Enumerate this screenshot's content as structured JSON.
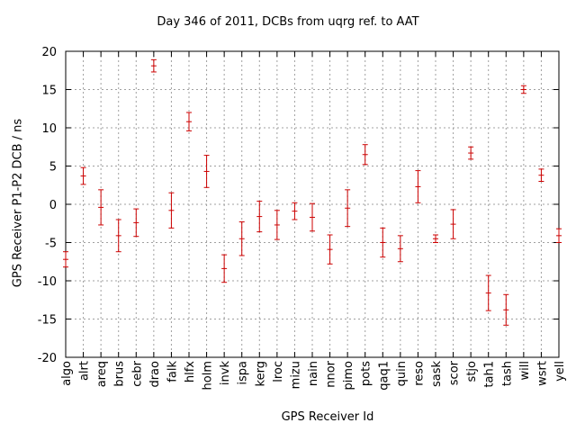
{
  "chart_data": {
    "type": "scatter",
    "title": "Day 346 of 2011, DCBs from uqrg ref. to AAT",
    "xlabel": "GPS Receiver Id",
    "ylabel": "GPS Receiver P1-P2 DCB / ns",
    "ylim": [
      -20,
      20
    ],
    "yticks": [
      -20,
      -15,
      -10,
      -5,
      0,
      5,
      10,
      15,
      20
    ],
    "grid": true,
    "error_bars": true,
    "series_color": "#cc0000",
    "categories": [
      "algo",
      "alrt",
      "areq",
      "brus",
      "cebr",
      "drao",
      "falk",
      "hlfx",
      "holm",
      "invk",
      "ispa",
      "kerg",
      "lroc",
      "mizu",
      "nain",
      "nnor",
      "pimo",
      "pots",
      "qaq1",
      "quin",
      "reso",
      "sask",
      "scor",
      "stjo",
      "tah1",
      "tash",
      "will",
      "wsrt",
      "yell"
    ],
    "values": [
      -7.2,
      3.7,
      -0.4,
      -4.1,
      -2.4,
      18.1,
      -0.8,
      10.8,
      4.3,
      -8.4,
      -4.5,
      -1.6,
      -2.7,
      -0.9,
      -1.7,
      -5.9,
      -0.5,
      6.5,
      -5.0,
      -5.8,
      2.3,
      -4.5,
      -2.6,
      6.7,
      -11.6,
      -13.8,
      15.0,
      3.8,
      -4.1
    ],
    "errors": [
      1.0,
      1.1,
      2.3,
      2.1,
      1.8,
      0.8,
      2.3,
      1.2,
      2.1,
      1.8,
      2.2,
      2.0,
      1.9,
      1.1,
      1.8,
      1.9,
      2.4,
      1.3,
      1.9,
      1.7,
      2.1,
      0.5,
      1.9,
      0.8,
      2.3,
      2.0,
      0.5,
      0.8,
      0.9
    ]
  }
}
